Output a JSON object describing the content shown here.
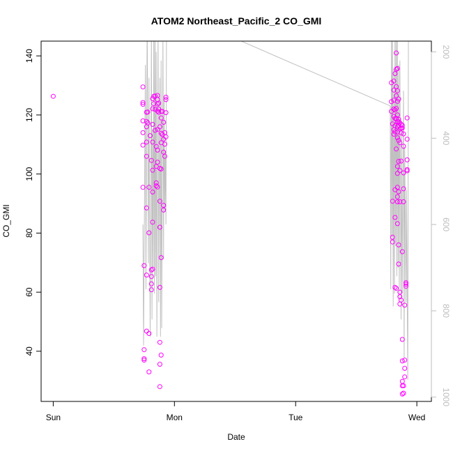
{
  "chart_data": {
    "type": "scatter",
    "title": "ATOM2 Northeast_Pacific_2 CO_GMI",
    "xlabel": "Date",
    "ylabel": "CO_GMI",
    "x_ticks": [
      "Sun",
      "Mon",
      "Tue",
      "Wed"
    ],
    "xlim_days": [
      -0.1,
      3.12
    ],
    "ylim": [
      23,
      145
    ],
    "y_ticks": [
      40,
      60,
      80,
      100,
      120,
      140
    ],
    "y2_ticks": [
      200,
      400,
      600,
      800,
      1000
    ],
    "y2lim": [
      1010,
      175
    ],
    "grid": false,
    "colors": {
      "points": "#ff00ff",
      "pressure_line": "#c0c0c0"
    },
    "series": [
      {
        "values": [
          [
            0.0,
            126.3
          ],
          [
            0.74,
            129.5
          ],
          [
            0.74,
            124.2
          ],
          [
            0.74,
            123.6
          ],
          [
            0.74,
            118.0
          ],
          [
            0.74,
            114.0
          ],
          [
            0.74,
            109.8
          ],
          [
            0.74,
            95.5
          ],
          [
            0.75,
            69.0
          ],
          [
            0.75,
            40.5
          ],
          [
            0.75,
            37.5
          ],
          [
            0.75,
            37.0
          ],
          [
            0.77,
            120.9
          ],
          [
            0.77,
            117.8
          ],
          [
            0.77,
            116.0
          ],
          [
            0.77,
            110.8
          ],
          [
            0.77,
            106.0
          ],
          [
            0.77,
            88.5
          ],
          [
            0.77,
            65.8
          ],
          [
            0.77,
            46.8
          ],
          [
            0.78,
            121.0
          ],
          [
            0.78,
            117.3
          ],
          [
            0.79,
            95.5
          ],
          [
            0.79,
            80.1
          ],
          [
            0.79,
            46.0
          ],
          [
            0.79,
            33.0
          ],
          [
            0.8,
            113.0
          ],
          [
            0.81,
            104.6
          ],
          [
            0.81,
            67.5
          ],
          [
            0.81,
            65.3
          ],
          [
            0.81,
            62.8
          ],
          [
            0.81,
            60.8
          ],
          [
            0.82,
            125.5
          ],
          [
            0.82,
            122.1
          ],
          [
            0.82,
            116.8
          ],
          [
            0.82,
            110.8
          ],
          [
            0.82,
            101.3
          ],
          [
            0.82,
            93.9
          ],
          [
            0.82,
            83.7
          ],
          [
            0.82,
            67.8
          ],
          [
            0.83,
            126.3
          ],
          [
            0.83,
            123.8
          ],
          [
            0.84,
            126.4
          ],
          [
            0.84,
            121.9
          ],
          [
            0.84,
            114.8
          ],
          [
            0.85,
            109.3
          ],
          [
            0.85,
            102.6
          ],
          [
            0.85,
            97.0
          ],
          [
            0.85,
            96.0
          ],
          [
            0.86,
            126.6
          ],
          [
            0.86,
            125.2
          ],
          [
            0.86,
            123.7
          ],
          [
            0.86,
            121.3
          ],
          [
            0.86,
            115.1
          ],
          [
            0.86,
            108.1
          ],
          [
            0.86,
            104.0
          ],
          [
            0.86,
            95.6
          ],
          [
            0.87,
            124.0
          ],
          [
            0.87,
            122.0
          ],
          [
            0.87,
            120.9
          ],
          [
            0.88,
            116.0
          ],
          [
            0.88,
            101.9
          ],
          [
            0.88,
            90.8
          ],
          [
            0.88,
            82.0
          ],
          [
            0.88,
            61.6
          ],
          [
            0.88,
            43.0
          ],
          [
            0.88,
            35.6
          ],
          [
            0.88,
            28.0
          ],
          [
            0.89,
            121.2
          ],
          [
            0.89,
            119.0
          ],
          [
            0.89,
            113.8
          ],
          [
            0.89,
            110.6
          ],
          [
            0.89,
            101.7
          ],
          [
            0.89,
            71.7
          ],
          [
            0.89,
            38.7
          ],
          [
            0.9,
            121.2
          ],
          [
            0.9,
            113.4
          ],
          [
            0.91,
            117.5
          ],
          [
            0.91,
            111.8
          ],
          [
            0.91,
            107.4
          ],
          [
            0.91,
            89.4
          ],
          [
            0.91,
            87.8
          ],
          [
            0.92,
            114.0
          ],
          [
            0.92,
            110.1
          ],
          [
            0.92,
            106.0
          ],
          [
            0.93,
            126.0
          ],
          [
            0.93,
            125.2
          ],
          [
            0.93,
            120.8
          ],
          [
            0.93,
            112.6
          ],
          [
            2.79,
            130.9
          ],
          [
            2.79,
            124.5
          ],
          [
            2.79,
            121.2
          ],
          [
            2.8,
            117.0
          ],
          [
            2.8,
            90.8
          ],
          [
            2.8,
            78.6
          ],
          [
            2.8,
            77.0
          ],
          [
            2.81,
            131.5
          ],
          [
            2.81,
            128.4
          ],
          [
            2.81,
            125.0
          ],
          [
            2.81,
            122.0
          ],
          [
            2.81,
            119.5
          ],
          [
            2.81,
            115.0
          ],
          [
            2.81,
            113.5
          ],
          [
            2.82,
            134.0
          ],
          [
            2.82,
            121.7
          ],
          [
            2.82,
            118.8
          ],
          [
            2.82,
            116.4
          ],
          [
            2.82,
            114.3
          ],
          [
            2.82,
            94.7
          ],
          [
            2.82,
            85.3
          ],
          [
            2.82,
            61.6
          ],
          [
            2.83,
            141.0
          ],
          [
            2.83,
            135.5
          ],
          [
            2.83,
            129.6
          ],
          [
            2.83,
            126.5
          ],
          [
            2.83,
            122.2
          ],
          [
            2.83,
            118.8
          ],
          [
            2.83,
            108.5
          ],
          [
            2.83,
            61.3
          ],
          [
            2.84,
            135.7
          ],
          [
            2.84,
            128.2
          ],
          [
            2.84,
            124.6
          ],
          [
            2.84,
            120.0
          ],
          [
            2.84,
            117.7
          ],
          [
            2.84,
            116.0
          ],
          [
            2.84,
            114.2
          ],
          [
            2.84,
            112.3
          ],
          [
            2.84,
            102.6
          ],
          [
            2.84,
            100.2
          ],
          [
            2.84,
            95.5
          ],
          [
            2.84,
            92.3
          ],
          [
            2.84,
            90.6
          ],
          [
            2.84,
            83.2
          ],
          [
            2.85,
            125.4
          ],
          [
            2.85,
            118.5
          ],
          [
            2.85,
            117.7
          ],
          [
            2.85,
            116.5
          ],
          [
            2.85,
            111.4
          ],
          [
            2.85,
            104.3
          ],
          [
            2.85,
            94.0
          ],
          [
            2.85,
            76.0
          ],
          [
            2.85,
            69.5
          ],
          [
            2.86,
            117.3
          ],
          [
            2.86,
            115.2
          ],
          [
            2.86,
            110.6
          ],
          [
            2.86,
            101.2
          ],
          [
            2.86,
            90.6
          ],
          [
            2.86,
            60.0
          ],
          [
            2.86,
            58.5
          ],
          [
            2.86,
            56.0
          ],
          [
            2.87,
            116.8
          ],
          [
            2.87,
            115.5
          ],
          [
            2.87,
            113.9
          ],
          [
            2.87,
            104.4
          ],
          [
            2.87,
            57.3
          ],
          [
            2.88,
            116.5
          ],
          [
            2.88,
            115.6
          ],
          [
            2.88,
            73.7
          ],
          [
            2.88,
            44.0
          ],
          [
            2.88,
            36.7
          ],
          [
            2.88,
            29.8
          ],
          [
            2.88,
            28.3
          ],
          [
            2.88,
            25.5
          ],
          [
            2.89,
            113.6
          ],
          [
            2.89,
            109.4
          ],
          [
            2.89,
            100.4
          ],
          [
            2.89,
            95.0
          ],
          [
            2.89,
            90.6
          ],
          [
            2.89,
            28.3
          ],
          [
            2.89,
            25.8
          ],
          [
            2.9,
            37.0
          ],
          [
            2.9,
            34.2
          ],
          [
            2.9,
            31.3
          ],
          [
            2.9,
            55.6
          ],
          [
            2.91,
            63.2
          ],
          [
            2.91,
            62.7
          ],
          [
            2.91,
            62.0
          ],
          [
            2.92,
            119.0
          ],
          [
            2.92,
            111.8
          ],
          [
            2.92,
            104.8
          ],
          [
            2.92,
            101.5
          ],
          [
            2.92,
            101.1
          ]
        ]
      }
    ],
    "pressure_segments": [
      [
        [
          0.74,
          600
        ],
        [
          0.745,
          880
        ],
        [
          0.76,
          230
        ],
        [
          0.765,
          750
        ],
        [
          0.775,
          110
        ],
        [
          0.785,
          690
        ],
        [
          0.79,
          260
        ],
        [
          0.8,
          860
        ],
        [
          0.81,
          150
        ],
        [
          0.815,
          820
        ],
        [
          0.82,
          380
        ],
        [
          0.825,
          700
        ],
        [
          0.83,
          90
        ],
        [
          0.835,
          760
        ],
        [
          0.84,
          120
        ],
        [
          0.845,
          720
        ],
        [
          0.85,
          200
        ],
        [
          0.855,
          860
        ],
        [
          0.865,
          150
        ],
        [
          0.87,
          780
        ],
        [
          0.88,
          260
        ],
        [
          0.885,
          860
        ],
        [
          0.89,
          220
        ],
        [
          0.895,
          840
        ],
        [
          0.905,
          160
        ],
        [
          0.91,
          680
        ],
        [
          0.915,
          310
        ],
        [
          0.92,
          570
        ],
        [
          0.925,
          430
        ],
        [
          0.93,
          600
        ],
        [
          0.935,
          100
        ]
      ],
      [
        [
          1.1,
          120
        ],
        [
          2.78,
          325
        ]
      ],
      [
        [
          2.78,
          325
        ],
        [
          2.785,
          750
        ],
        [
          2.79,
          150
        ],
        [
          2.795,
          630
        ],
        [
          2.8,
          120
        ],
        [
          2.805,
          790
        ],
        [
          2.81,
          240
        ],
        [
          2.815,
          760
        ],
        [
          2.82,
          100
        ],
        [
          2.825,
          650
        ],
        [
          2.83,
          150
        ],
        [
          2.835,
          720
        ],
        [
          2.84,
          160
        ],
        [
          2.845,
          700
        ],
        [
          2.85,
          230
        ],
        [
          2.855,
          770
        ],
        [
          2.86,
          220
        ],
        [
          2.87,
          820
        ],
        [
          2.875,
          380
        ],
        [
          2.88,
          760
        ],
        [
          2.89,
          290
        ],
        [
          2.895,
          910
        ],
        [
          2.9,
          420
        ],
        [
          2.91,
          780
        ],
        [
          2.915,
          520
        ],
        [
          2.925,
          960
        ],
        [
          2.93,
          175
        ]
      ]
    ]
  }
}
